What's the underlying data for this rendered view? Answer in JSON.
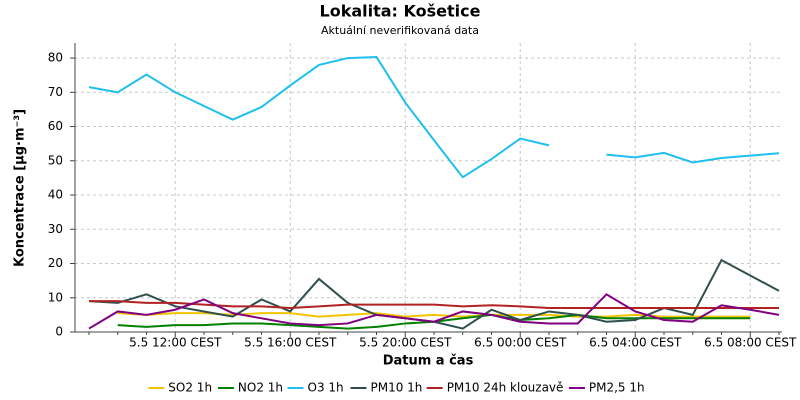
{
  "chart_data": {
    "type": "line",
    "title": "Lokalita: Košetice",
    "subtitle": "Aktuální neverifikovaná data",
    "xlabel": "Datum a čas",
    "ylabel": "Koncentrace [µg·m⁻³]",
    "categories": [
      null,
      null,
      null,
      "5.5 12:00 CEST",
      null,
      null,
      null,
      "5.5 16:00 CEST",
      null,
      null,
      null,
      "5.5 20:00 CEST",
      null,
      null,
      null,
      "6.5 00:00 CEST",
      null,
      null,
      null,
      "6.5 04:00 CEST",
      null,
      null,
      null,
      "6.5 08:00 CEST",
      null
    ],
    "ylim": [
      0,
      84.4
    ],
    "yticks": [
      0,
      10,
      20,
      30,
      40,
      50,
      60,
      70,
      80
    ],
    "grid": true,
    "legend": "bottom",
    "series": [
      {
        "name": "SO2 1h",
        "color": "#f2c500",
        "values": [
          null,
          5.5,
          5,
          5.5,
          5.5,
          5,
          5.5,
          5.5,
          4.5,
          5,
          5.5,
          4.5,
          5,
          4.5,
          5,
          5,
          5,
          4.5,
          4.5,
          5,
          4.5,
          4.5,
          4.5,
          4.5,
          null
        ]
      },
      {
        "name": "NO2 1h",
        "color": "#008000",
        "values": [
          null,
          2,
          1.5,
          2,
          2,
          2.5,
          2.5,
          2,
          1.5,
          1,
          1.5,
          2.5,
          3,
          4,
          5,
          3.5,
          4,
          5,
          4,
          4,
          4,
          4,
          4,
          4,
          null
        ]
      },
      {
        "name": "O3 1h",
        "color": "#1ebfef",
        "values": [
          71.5,
          70,
          75.2,
          70,
          66,
          62,
          65.7,
          72,
          78,
          80,
          80.3,
          67,
          56,
          45.2,
          50.5,
          56.5,
          54.5,
          null,
          51.8,
          51,
          52.3,
          49.5,
          50.8,
          51.5,
          52.2
        ]
      },
      {
        "name": "PM10 1h",
        "color": "#2f4f4f",
        "values": [
          9,
          8.5,
          11,
          7.5,
          6,
          4.5,
          9.5,
          6,
          15.5,
          8.5,
          5,
          4,
          3,
          1,
          6.5,
          3.5,
          6,
          5,
          3,
          3.5,
          7,
          5,
          21,
          16.5,
          12
        ]
      },
      {
        "name": "PM10 24h klouzavě",
        "color": "#b22222",
        "values": [
          9,
          9,
          8.5,
          8.5,
          8,
          7.5,
          7.5,
          7,
          7.5,
          8,
          8,
          8,
          8,
          7.5,
          7.8,
          7.5,
          7,
          7,
          7,
          7,
          7,
          7,
          7,
          7,
          7
        ]
      },
      {
        "name": "PM2,5 1h",
        "color": "#800080",
        "values": [
          1,
          6,
          5,
          6.5,
          9.5,
          5.5,
          4,
          2.5,
          2,
          2.5,
          5,
          4,
          3,
          6,
          5,
          3,
          2.5,
          2.5,
          11,
          6,
          3.5,
          3,
          7.8,
          6.5,
          5
        ]
      }
    ]
  }
}
